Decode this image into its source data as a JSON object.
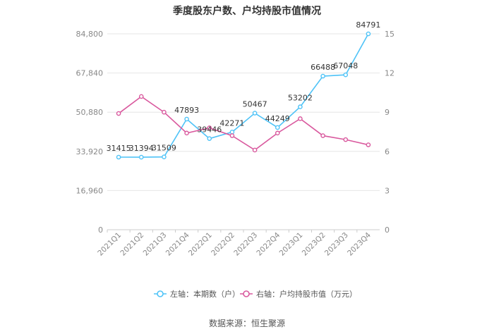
{
  "title": "季度股东户数、户均持股市值情况",
  "source": "数据来源：恒生聚源",
  "chart_data": {
    "type": "line",
    "title": "季度股东户数、户均持股市值情况",
    "categories": [
      "2021Q1",
      "2021Q2",
      "2021Q3",
      "2021Q4",
      "2022Q1",
      "2022Q2",
      "2022Q3",
      "2022Q4",
      "2023Q1",
      "2023Q2",
      "2023Q3",
      "2023Q4"
    ],
    "left_axis": {
      "ticks": [
        "0",
        "16,960",
        "33,920",
        "50,880",
        "67,840",
        "84,800"
      ],
      "min": 0,
      "max": 84800
    },
    "right_axis": {
      "ticks": [
        "0",
        "3",
        "6",
        "9",
        "12",
        "15"
      ],
      "min": 0,
      "max": 15
    },
    "grid": true,
    "legend_position": "bottom",
    "series": [
      {
        "name": "左轴：本期数（户）",
        "axis": "left",
        "color": "#4fc3f7",
        "values": [
          31415,
          31394,
          31509,
          47893,
          39446,
          42271,
          50467,
          44249,
          53202,
          66488,
          67048,
          84791
        ],
        "labels": [
          "31415",
          "31394",
          "31509",
          "47893",
          "39446",
          "42271",
          "50467",
          "44249",
          "53202",
          "66488",
          "67048",
          "84791"
        ]
      },
      {
        "name": "右轴：户均持股市值（万元）",
        "axis": "right",
        "color": "#d9599e",
        "values": [
          8.9,
          10.2,
          9.0,
          7.4,
          7.8,
          7.2,
          6.1,
          7.4,
          8.5,
          7.2,
          6.9,
          6.5
        ]
      }
    ]
  }
}
